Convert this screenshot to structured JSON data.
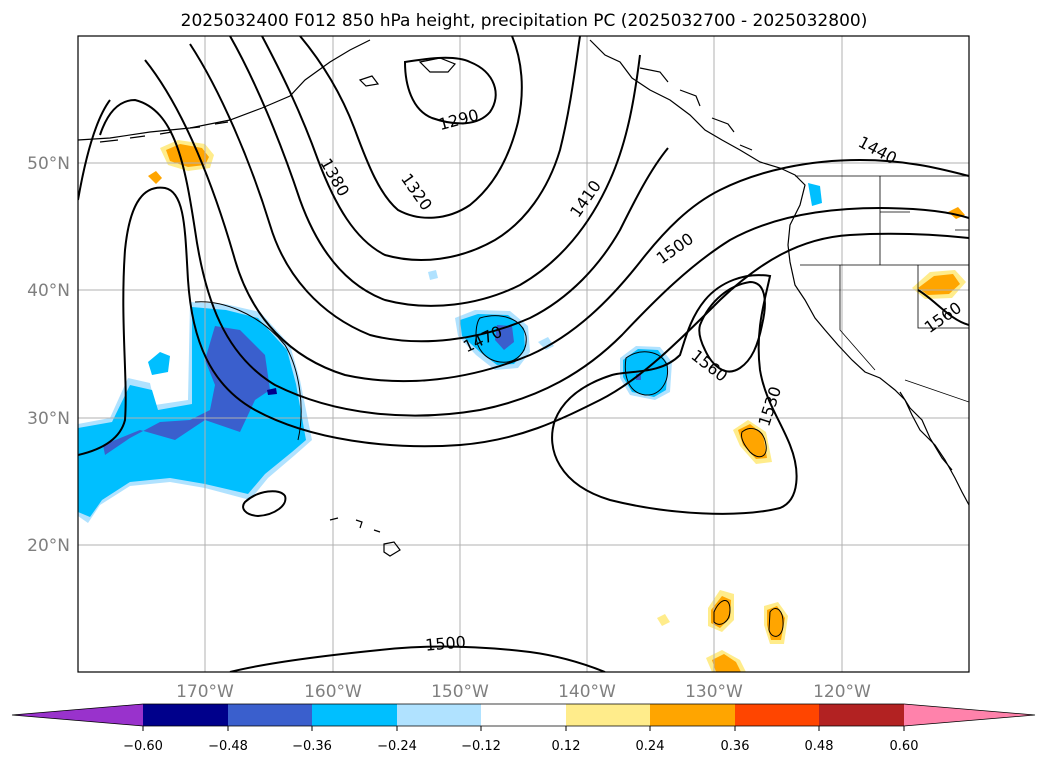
{
  "title": "2025032400 F012 850 hPa height, precipitation PC (2025032700 - 2025032800)",
  "map": {
    "lon_range": [
      -180,
      -110
    ],
    "lat_range": [
      10,
      60
    ],
    "latitude_labels": [
      "20°N",
      "30°N",
      "40°N",
      "50°N"
    ],
    "longitude_labels": [
      "170°W",
      "160°W",
      "150°W",
      "140°W",
      "130°W",
      "120°W"
    ],
    "gridlines": true,
    "contour_labels": [
      "1290",
      "1380",
      "1320",
      "1410",
      "1440",
      "1500",
      "1470",
      "1560",
      "1530",
      "1500",
      "1560"
    ],
    "field": "850 hPa height",
    "shading": "precipitation PC"
  },
  "colorbar": {
    "ticks": [
      "−0.60",
      "−0.48",
      "−0.36",
      "−0.24",
      "−0.12",
      "0.12",
      "0.24",
      "0.36",
      "0.48",
      "0.60"
    ],
    "colors": {
      "under": "#9932cc",
      "bins": [
        "#00008b",
        "#3a5fcd",
        "#00bfff",
        "#b0e2ff",
        "#ffffff",
        "#ffec8b",
        "#ffa500",
        "#ff4500",
        "#b22222"
      ],
      "over": "#ff82ab"
    },
    "extend": "both"
  }
}
